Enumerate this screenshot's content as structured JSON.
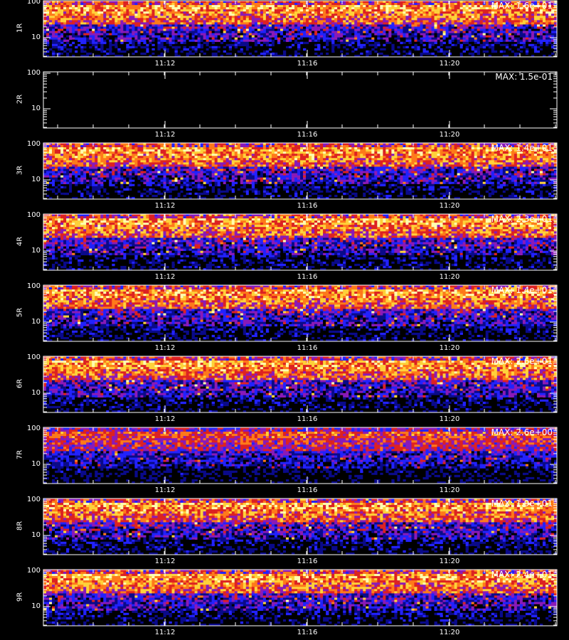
{
  "chart_data": {
    "type": "heatmap",
    "colormap": [
      "#000000",
      "#0a0a8a",
      "#2222ff",
      "#8a1ab8",
      "#dd2222",
      "#ff7a1a",
      "#ffd23a",
      "#ffffb0"
    ],
    "x_ticks": [
      "11:12",
      "11:16",
      "11:20"
    ],
    "y_ticks": [
      "100",
      "10"
    ],
    "y_scale": "log",
    "panels": [
      {
        "name": "1R",
        "max_label": "MAX: 1.6e+01",
        "level": 1.0
      },
      {
        "name": "2R",
        "max_label": "MAX: 1.5e-01",
        "level": 0.0
      },
      {
        "name": "3R",
        "max_label": "MAX: 1.4e+01",
        "level": 1.0
      },
      {
        "name": "4R",
        "max_label": "MAX: 2.3e+01",
        "level": 1.0
      },
      {
        "name": "5R",
        "max_label": "MAX: 1.4e+01",
        "level": 1.0
      },
      {
        "name": "6R",
        "max_label": "MAX: 2.6e+01",
        "level": 1.0
      },
      {
        "name": "7R",
        "max_label": "MAX: 2.6e+00",
        "level": 0.8
      },
      {
        "name": "8R",
        "max_label": "MAX: 1.9e+01",
        "level": 1.0
      },
      {
        "name": "9R",
        "max_label": "MAX: 2.4e+01",
        "level": 1.0
      }
    ]
  }
}
